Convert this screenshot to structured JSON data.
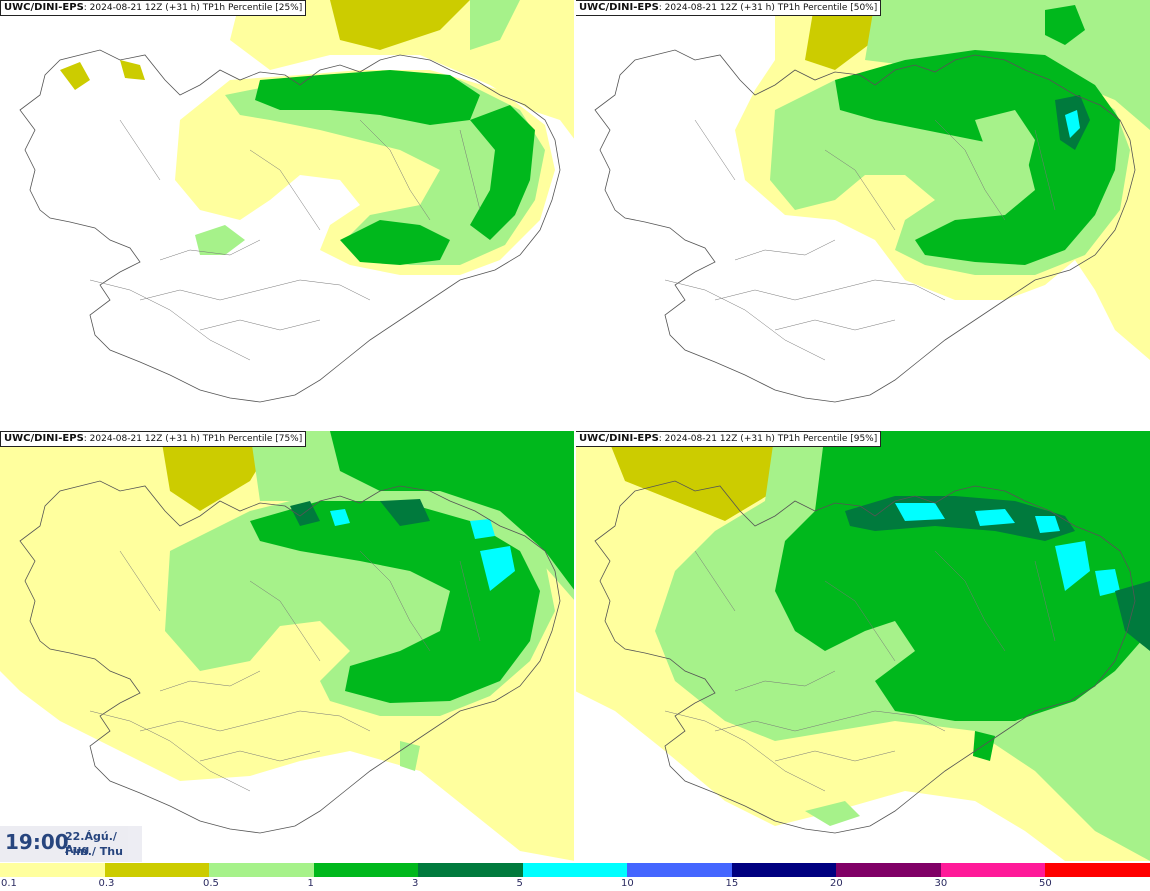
{
  "panels": [
    {
      "model": "UWC/DINI-EPS",
      "info": ": 2024-08-21 12Z (+31 h) TP1h Percentile [25%]"
    },
    {
      "model": "UWC/DINI-EPS",
      "info": ": 2024-08-21 12Z (+31 h) TP1h Percentile [50%]"
    },
    {
      "model": "UWC/DINI-EPS",
      "info": ": 2024-08-21 12Z (+31 h) TP1h Percentile [75%]"
    },
    {
      "model": "UWC/DINI-EPS",
      "info": ": 2024-08-21 12Z (+31 h) TP1h Percentile [95%]"
    }
  ],
  "time": {
    "clock": "19:00",
    "date": "22.Ágú./ Aug",
    "weekday": "Fim./ Thu"
  },
  "legend": {
    "colors": [
      "#ffff9e",
      "#cccc00",
      "#a6f28a",
      "#00b81c",
      "#007a3d",
      "#00ffff",
      "#4466ff",
      "#000080",
      "#800066",
      "#ff1a99",
      "#ff0000"
    ],
    "ticks": [
      "0.1",
      "0.3",
      "0.5",
      "1",
      "3",
      "5",
      "10",
      "15",
      "20",
      "30",
      "50"
    ]
  }
}
